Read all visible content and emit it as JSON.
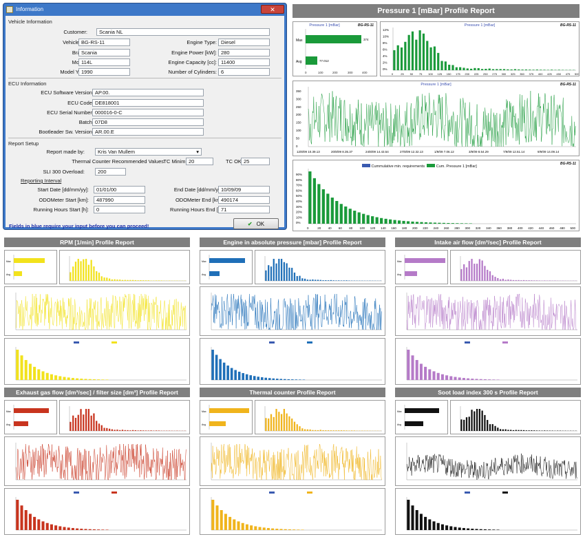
{
  "dialog": {
    "title": "Information",
    "close": "✕",
    "vehicle_section": "Vehicle Information",
    "customer_label": "Customer:",
    "customer": "Scania NL",
    "vehicle_id_label": "Vehicle ID:",
    "vehicle_id": "BG-RS-11",
    "brand_label": "Brand:",
    "brand": "Scania",
    "model_label": "Model:",
    "model": "114L",
    "model_year_label": "Model Year:",
    "model_year": "1990",
    "engine_type_label": "Engine Type:",
    "engine_type": "Diesel",
    "engine_power_label": "Engine Power [kW]:",
    "engine_power": "280",
    "engine_capacity_label": "Engine Capacity [cc]:",
    "engine_capacity": "11400",
    "cylinders_label": "Number of Cylinders:",
    "cylinders": "6",
    "ecu_section": "ECU Information",
    "ecu_sw_label": "ECU Software Version:",
    "ecu_sw": "AP.00.",
    "ecu_code_label": "ECU Code:",
    "ecu_code": "DE818001",
    "ecu_serial_label": "ECU Serial Number:",
    "ecu_serial": "000016-0-C",
    "batch_label": "Batch:",
    "batch": "07D8",
    "bootloader_label": "Bootleader Sw. Version:",
    "bootloader": "AR.00.E",
    "report_section": "Report Setup",
    "made_by_label": "Report made by:",
    "made_by": "Kris Van Mullem",
    "thermal_label": "Thermal Counter Recommended Values",
    "tc_min_label": "TC Minimum:",
    "tc_min": "20",
    "tc_ok_label": "TC OK:",
    "tc_ok": "25",
    "sli_label": "SLI 300 Overload:",
    "sli": "200",
    "interval_section": "Reporting Interval",
    "start_date_label": "Start Date [dd/mm/yy]:",
    "start_date": "01/01/00",
    "end_date_label": "End Date [dd/mm/yy]:",
    "end_date": "10/09/09",
    "odo_start_label": "ODOMeter Start [km]:",
    "odo_start": "487990",
    "odo_end_label": "ODOMeter End [km]:",
    "odo_end": "490174",
    "hours_start_label": "Running Hours Start [h]:",
    "hours_start": "0",
    "hours_end_label": "Running Hours End [h]:",
    "hours_end": "71",
    "note": "Fields in blue require your input before you can proceed!",
    "ok": "OK",
    "ok_icon": "check-icon"
  },
  "main_report": {
    "title": "Pressure 1 [mBar] Profile Report",
    "vehicle": "BG-RS-11",
    "bar_title": "Pressure 1 [mBar]",
    "max_label": "Max",
    "max_value": "374",
    "avg_label": "Avg",
    "avg_value": "77.012",
    "hist_title": "Pressure 1 [mBar]",
    "line_title": "Pressure 1 [mBar]",
    "line_dates": [
      "12/8/09 10.39.13",
      "20/8/09 8.35.37",
      "24/8/09 14.43.54",
      "27/8/09 12.32.13",
      "1/9/09 7.06.12",
      "3/9/09 8.54.29",
      "7/9/09 12.51.14",
      "9/9/09 14.09.14"
    ],
    "cum_legend_1": "Cummulative min. requirements",
    "cum_legend_2": "Cum. Pressure 1 [mBar]"
  },
  "reports": [
    {
      "title": "RPM [1/min] Profile Report",
      "color": "#f2e21c",
      "line": "#f2e21c"
    },
    {
      "title": "Engine in absolute pressure [mbar] Profile Report",
      "color": "#1f6fb8",
      "line": "#1f6fb8"
    },
    {
      "title": "Intake air flow [dm³/sec] Profile Report",
      "color": "#b57ac8",
      "line": "#b57ac8"
    },
    {
      "title": "Exhaust gas flow [dm³/sec] / filter size [dm³] Profile Report",
      "color": "#c8341e",
      "line": "#c8341e"
    },
    {
      "title": "Thermal counter Profile Report",
      "color": "#f0b41c",
      "line": "#f0b41c"
    },
    {
      "title": "Soot load index 300 s Profile Report",
      "color": "#111111",
      "line": "#111111"
    }
  ],
  "colors": {
    "green": "#1a9a3a",
    "blue": "#3a5ab0",
    "gray": "#7f7f7f"
  }
}
